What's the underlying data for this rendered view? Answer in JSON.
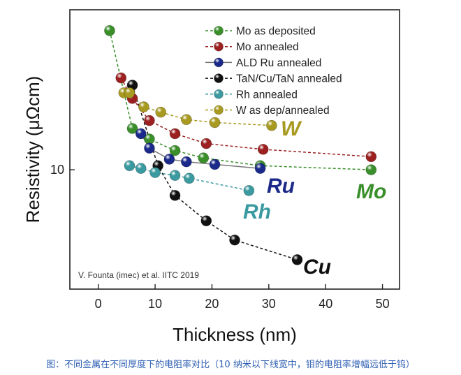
{
  "caption": "图：不同金属在不同厚度下的电阻率对比（10 纳米以下线宽中，钼的电阻率增幅远低于钨）",
  "chart_data": {
    "type": "scatter",
    "xlabel": "Thickness (nm)",
    "ylabel": "Resistivity (μΩcm)",
    "x_ticks": [
      0,
      10,
      20,
      30,
      40,
      50
    ],
    "y_ticks": [
      10
    ],
    "xlim": [
      -5,
      53
    ],
    "ylim": [
      4.2,
      32
    ],
    "y_scale": "log",
    "grid": false,
    "legend_position": "top-right",
    "annotation": "V. Founta (imec) et al. IITC 2019",
    "series": [
      {
        "name": "Mo as deposited",
        "label": "Mo",
        "color": "#3a8f2b",
        "line_color": "#3a8f2b",
        "x": [
          2,
          6,
          9,
          13.5,
          18.5,
          28.5,
          48
        ],
        "y": [
          27.5,
          13.5,
          12.5,
          11.5,
          10.9,
          10.3,
          10.0
        ]
      },
      {
        "name": "Mo annealed",
        "color": "#9c2020",
        "line_color": "#9c2020",
        "x": [
          4,
          6,
          9,
          13.5,
          19,
          29,
          48
        ],
        "y": [
          19.5,
          16.8,
          14.3,
          13.0,
          12.1,
          11.6,
          11.0
        ]
      },
      {
        "name": "ALD Ru annealed",
        "label": "Ru",
        "color": "#1b2a8a",
        "line_color": "#777777",
        "x": [
          7.5,
          9,
          12.5,
          15.5,
          20.5,
          28.5
        ],
        "y": [
          13.0,
          11.7,
          10.8,
          10.6,
          10.4,
          10.1
        ]
      },
      {
        "name": "TaN/Cu/TaN annealed",
        "label": "Cu",
        "color": "#111111",
        "line_color": "#111111",
        "x": [
          6,
          10.5,
          13.5,
          19,
          24,
          35
        ],
        "y": [
          18.5,
          10.3,
          8.3,
          6.9,
          6.0,
          5.2
        ]
      },
      {
        "name": "Rh annealed",
        "label": "Rh",
        "color": "#3a9aa0",
        "line_color": "#3a9aa0",
        "x": [
          5.5,
          7.5,
          10,
          13.5,
          16,
          26.5
        ],
        "y": [
          10.3,
          10.1,
          9.8,
          9.6,
          9.4,
          8.6
        ]
      },
      {
        "name": "W as dep/annealed",
        "label": "W",
        "color": "#a89a20",
        "line_color": "#a89a20",
        "x": [
          4.5,
          5.5,
          8,
          11,
          15.5,
          20.5,
          30.5
        ],
        "y": [
          17.5,
          17.5,
          15.8,
          15.2,
          14.4,
          14.1,
          13.8
        ]
      }
    ]
  }
}
